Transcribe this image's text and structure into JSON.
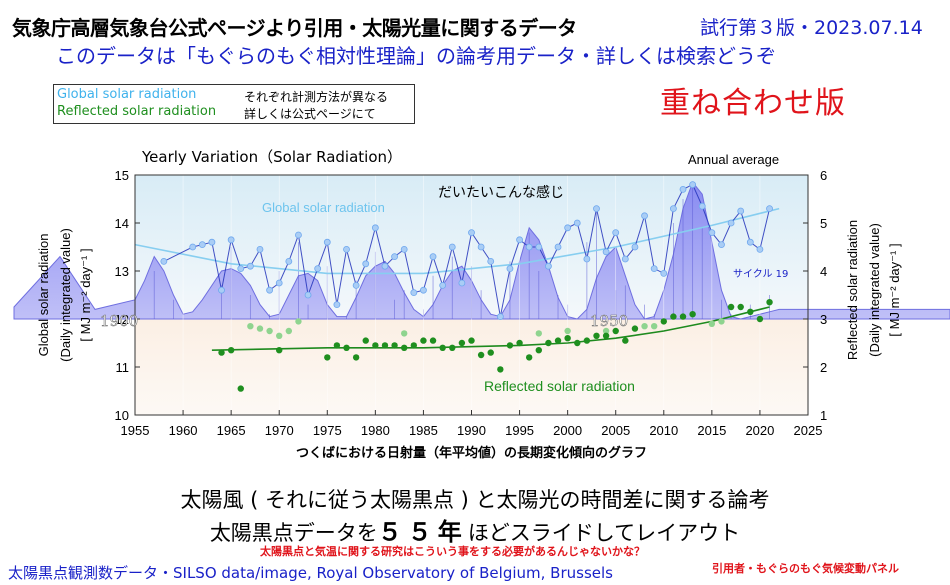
{
  "header": {
    "title": "気象庁高層気象台公式ページより引用・太陽光量に関するデータ",
    "version": "試行第３版・2023.07.14",
    "subtitle": "このデータは「もぐらのもぐ相対性理論」の論考用データ・詳しくは検索どうぞ"
  },
  "legend": {
    "global": "Global solar radiation",
    "reflected": "Reflected solar radiation",
    "note1": "それぞれ計測方法が異なる",
    "note2": "詳しくは公式ページにて"
  },
  "overlay_title": "重ね合わせ版",
  "captions": {
    "line1": "太陽風 ( それに従う太陽黒点 ) と太陽光の時間差に関する論考",
    "line2_pre": "太陽黒点データを",
    "line2_big": "５５年",
    "line2_post": "ほどスライドしてレイアウト",
    "note": "太陽黒点と気温に関する研究はこういう事をする必要があるんじゃないかな？",
    "source": "太陽黒点観測数データ・SILSO data/image, Royal Observatory of Belgium, Brussels",
    "credit": "引用者・もぐらのもぐ気候変動パネル"
  },
  "colors": {
    "global_line": "#87cef0",
    "global_dot": "#6fa8ee",
    "sunspot_line": "#2233bb",
    "sunspot_fill": "#8c8cf2",
    "reflected_trend": "#1e8a1e",
    "reflected_dark": "#1f8f1f",
    "reflected_light": "#8fd48f",
    "accent_red": "#e0141b",
    "blue_text": "#1a22c8"
  },
  "chart_data": {
    "type": "line",
    "title": "Yearly Variation（Solar Radiation）",
    "annual_label": "Annual average",
    "ylabel_left": [
      "Global solar radiation",
      "(Daily integrated value)",
      "[ MJ m⁻² day⁻¹ ]"
    ],
    "ylabel_right": [
      "Reflected solar radiation",
      "(Daily integrated value)",
      "[ MJ m⁻² day⁻¹ ]"
    ],
    "xlabel": "つくばにおける日射量（年平均値）の長期変化傾向のグラフ",
    "annotation": "だいたいこんな感じ",
    "cycle_label": "サイクル 19",
    "sunspot_ticks": [
      "1900",
      "1950"
    ],
    "series_labels": {
      "global": "Global solar radiation",
      "reflected": "Reflected solar radiation"
    },
    "xlim": [
      1955,
      2025
    ],
    "ylim_left": [
      10,
      15
    ],
    "ylim_right": [
      1,
      6
    ],
    "x_ticks": [
      1955,
      1960,
      1965,
      1970,
      1975,
      1980,
      1985,
      1990,
      1995,
      2000,
      2005,
      2010,
      2015,
      2020,
      2025
    ],
    "y_ticks_left": [
      10,
      11,
      12,
      13,
      14,
      15
    ],
    "y_ticks_right": [
      1,
      2,
      3,
      4,
      5,
      6
    ],
    "global_annual": {
      "x": [
        1958,
        1961,
        1962,
        1963,
        1964,
        1965,
        1966,
        1967,
        1968,
        1969,
        1970,
        1971,
        1972,
        1973,
        1974,
        1975,
        1976,
        1977,
        1978,
        1979,
        1980,
        1981,
        1982,
        1983,
        1984,
        1985,
        1986,
        1987,
        1988,
        1989,
        1990,
        1991,
        1992,
        1993,
        1994,
        1995,
        1996,
        1997,
        1998,
        1999,
        2000,
        2001,
        2002,
        2003,
        2004,
        2005,
        2006,
        2007,
        2008,
        2009,
        2010,
        2011,
        2012,
        2013,
        2014,
        2015,
        2016,
        2017,
        2018,
        2019,
        2020,
        2021
      ],
      "y": [
        13.2,
        13.5,
        13.55,
        13.6,
        12.6,
        13.65,
        13.05,
        13.1,
        13.45,
        12.6,
        12.75,
        13.2,
        13.75,
        12.5,
        13.05,
        13.6,
        12.3,
        13.45,
        12.7,
        13.15,
        13.9,
        13.1,
        13.3,
        13.45,
        12.55,
        12.6,
        13.3,
        12.7,
        13.5,
        12.75,
        13.8,
        13.5,
        13.2,
        12.05,
        13.05,
        13.65,
        13.5,
        13.5,
        13.1,
        13.5,
        13.9,
        14.0,
        13.25,
        14.3,
        13.4,
        13.8,
        13.25,
        13.5,
        14.15,
        13.05,
        12.95,
        14.3,
        14.7,
        14.8,
        14.35,
        13.8,
        13.55,
        14.0,
        14.25,
        13.6,
        13.45,
        14.3
      ]
    },
    "global_trend": {
      "x": [
        1955,
        1965,
        1975,
        1985,
        1995,
        2005,
        2015,
        2022
      ],
      "y": [
        13.55,
        13.15,
        12.95,
        12.95,
        13.15,
        13.5,
        13.95,
        14.3
      ]
    },
    "reflected_dark": {
      "x": [
        1964,
        1965,
        1966,
        1970,
        1975,
        1976,
        1977,
        1978,
        1979,
        1980,
        1981,
        1982,
        1983,
        1984,
        1985,
        1986,
        1987,
        1988,
        1989,
        1990,
        1991,
        1992,
        1993,
        1994,
        1995,
        1996,
        1997,
        1998,
        1999,
        2000,
        2001,
        2002,
        2003,
        2004,
        2005,
        2006,
        2007,
        2010,
        2011,
        2012,
        2013,
        2017,
        2018,
        2019,
        2020,
        2021
      ],
      "y": [
        2.3,
        2.35,
        1.55,
        2.35,
        2.2,
        2.45,
        2.4,
        2.2,
        2.55,
        2.45,
        2.45,
        2.45,
        2.4,
        2.45,
        2.55,
        2.55,
        2.4,
        2.4,
        2.5,
        2.55,
        2.25,
        2.3,
        1.95,
        2.45,
        2.5,
        2.2,
        2.35,
        2.5,
        2.55,
        2.6,
        2.5,
        2.55,
        2.65,
        2.65,
        2.75,
        2.55,
        2.8,
        2.95,
        3.05,
        3.05,
        3.1,
        3.25,
        3.25,
        3.15,
        3.0,
        3.35
      ]
    },
    "reflected_light": {
      "x": [
        1967,
        1968,
        1969,
        1970,
        1971,
        1972,
        1983,
        1997,
        2000,
        2004,
        2008,
        2009,
        2015,
        2016
      ],
      "y": [
        2.85,
        2.8,
        2.75,
        2.65,
        2.75,
        2.95,
        2.7,
        2.7,
        2.75,
        2.75,
        2.85,
        2.85,
        2.9,
        2.95
      ]
    },
    "reflected_trend": {
      "x": [
        1963,
        1975,
        1985,
        1995,
        2000,
        2005,
        2010,
        2015,
        2021
      ],
      "y": [
        2.35,
        2.4,
        2.4,
        2.45,
        2.5,
        2.6,
        2.75,
        2.95,
        3.25
      ]
    },
    "sunspot_curve": {
      "x": [
        1955,
        1956,
        1957,
        1958,
        1959,
        1960,
        1961,
        1962,
        1963,
        1964,
        1965,
        1966,
        1967,
        1968,
        1969,
        1970,
        1971,
        1972,
        1973,
        1974,
        1975,
        1976,
        1977,
        1978,
        1979,
        1980,
        1981,
        1982,
        1983,
        1984,
        1985,
        1986,
        1987,
        1988,
        1989,
        1990,
        1991,
        1992,
        1993,
        1994,
        1995,
        1996,
        1997,
        1998,
        1999,
        2000,
        2001,
        2002,
        2003,
        2004,
        2005,
        2006,
        2007,
        2008,
        2009,
        2010,
        2011,
        2012,
        2013,
        2014,
        2015,
        2016,
        2017,
        2018,
        2019,
        2020,
        2021,
        2022,
        2023,
        2024,
        2025
      ],
      "y": [
        12.4,
        12.8,
        13.3,
        13.0,
        12.5,
        12.1,
        12.15,
        12.4,
        12.7,
        13.0,
        13.05,
        12.95,
        12.7,
        12.3,
        12.05,
        12.1,
        12.5,
        12.9,
        12.95,
        12.8,
        12.3,
        12.05,
        12.05,
        12.45,
        12.9,
        13.1,
        13.2,
        12.95,
        12.55,
        12.2,
        12.05,
        12.3,
        12.7,
        13.0,
        13.1,
        12.8,
        12.4,
        12.1,
        12.05,
        12.4,
        13.2,
        13.9,
        13.65,
        13.1,
        12.45,
        12.05,
        12.0,
        12.2,
        12.85,
        13.3,
        13.5,
        12.9,
        12.3,
        12.0,
        12.05,
        12.6,
        13.35,
        14.3,
        14.85,
        14.6,
        13.6,
        12.6,
        12.05,
        12.0,
        12.05,
        12.1,
        12.15,
        12.2,
        12.2,
        12.2,
        12.2
      ]
    },
    "sunspot_monthly": {
      "x": [
        1957,
        1959,
        1961,
        1964,
        1965,
        1967,
        1969,
        1970,
        1972,
        1973,
        1975,
        1977,
        1978,
        1980,
        1982,
        1983,
        1985,
        1986,
        1988,
        1990,
        1991,
        1993,
        1994,
        1996,
        1997,
        1999,
        2000,
        2002,
        2003,
        2005,
        2006,
        2008,
        2009,
        2011,
        2012,
        2013,
        2014,
        2016,
        2017,
        2019,
        2021
      ],
      "y": [
        13.0,
        12.4,
        12.0,
        12.7,
        13.5,
        12.5,
        12.1,
        13.0,
        13.6,
        12.3,
        13.1,
        12.05,
        12.8,
        13.4,
        12.4,
        12.6,
        12.2,
        12.9,
        13.3,
        13.1,
        12.6,
        12.05,
        13.2,
        13.8,
        13.0,
        12.5,
        12.3,
        13.6,
        14.3,
        12.6,
        12.7,
        12.3,
        12.1,
        14.0,
        14.5,
        14.85,
        13.9,
        12.4,
        12.1,
        12.3,
        12.5
      ]
    }
  }
}
